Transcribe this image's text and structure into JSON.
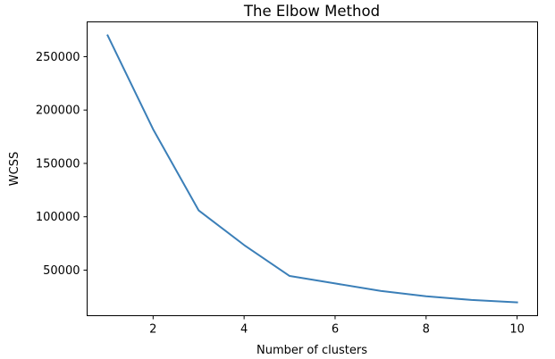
{
  "chart_data": {
    "type": "line",
    "title": "The Elbow Method",
    "xlabel": "Number of clusters",
    "ylabel": "WCSS",
    "x": [
      1,
      2,
      3,
      4,
      5,
      6,
      7,
      8,
      9,
      10
    ],
    "series": [
      {
        "values": [
          270000,
          182000,
          106000,
          73500,
          44500,
          37500,
          30500,
          25500,
          22000,
          19800
        ],
        "color": "#3b7fb8"
      }
    ],
    "xlim": [
      0.55,
      10.45
    ],
    "ylim": [
      7300,
      282600
    ],
    "xticks": [
      2,
      4,
      6,
      8,
      10
    ],
    "yticks": [
      50000,
      100000,
      150000,
      200000,
      250000
    ],
    "xtick_labels": [
      "2",
      "4",
      "6",
      "8",
      "10"
    ],
    "ytick_labels": [
      "50000",
      "100000",
      "150000",
      "200000",
      "250000"
    ],
    "grid": false,
    "legend": "none"
  }
}
